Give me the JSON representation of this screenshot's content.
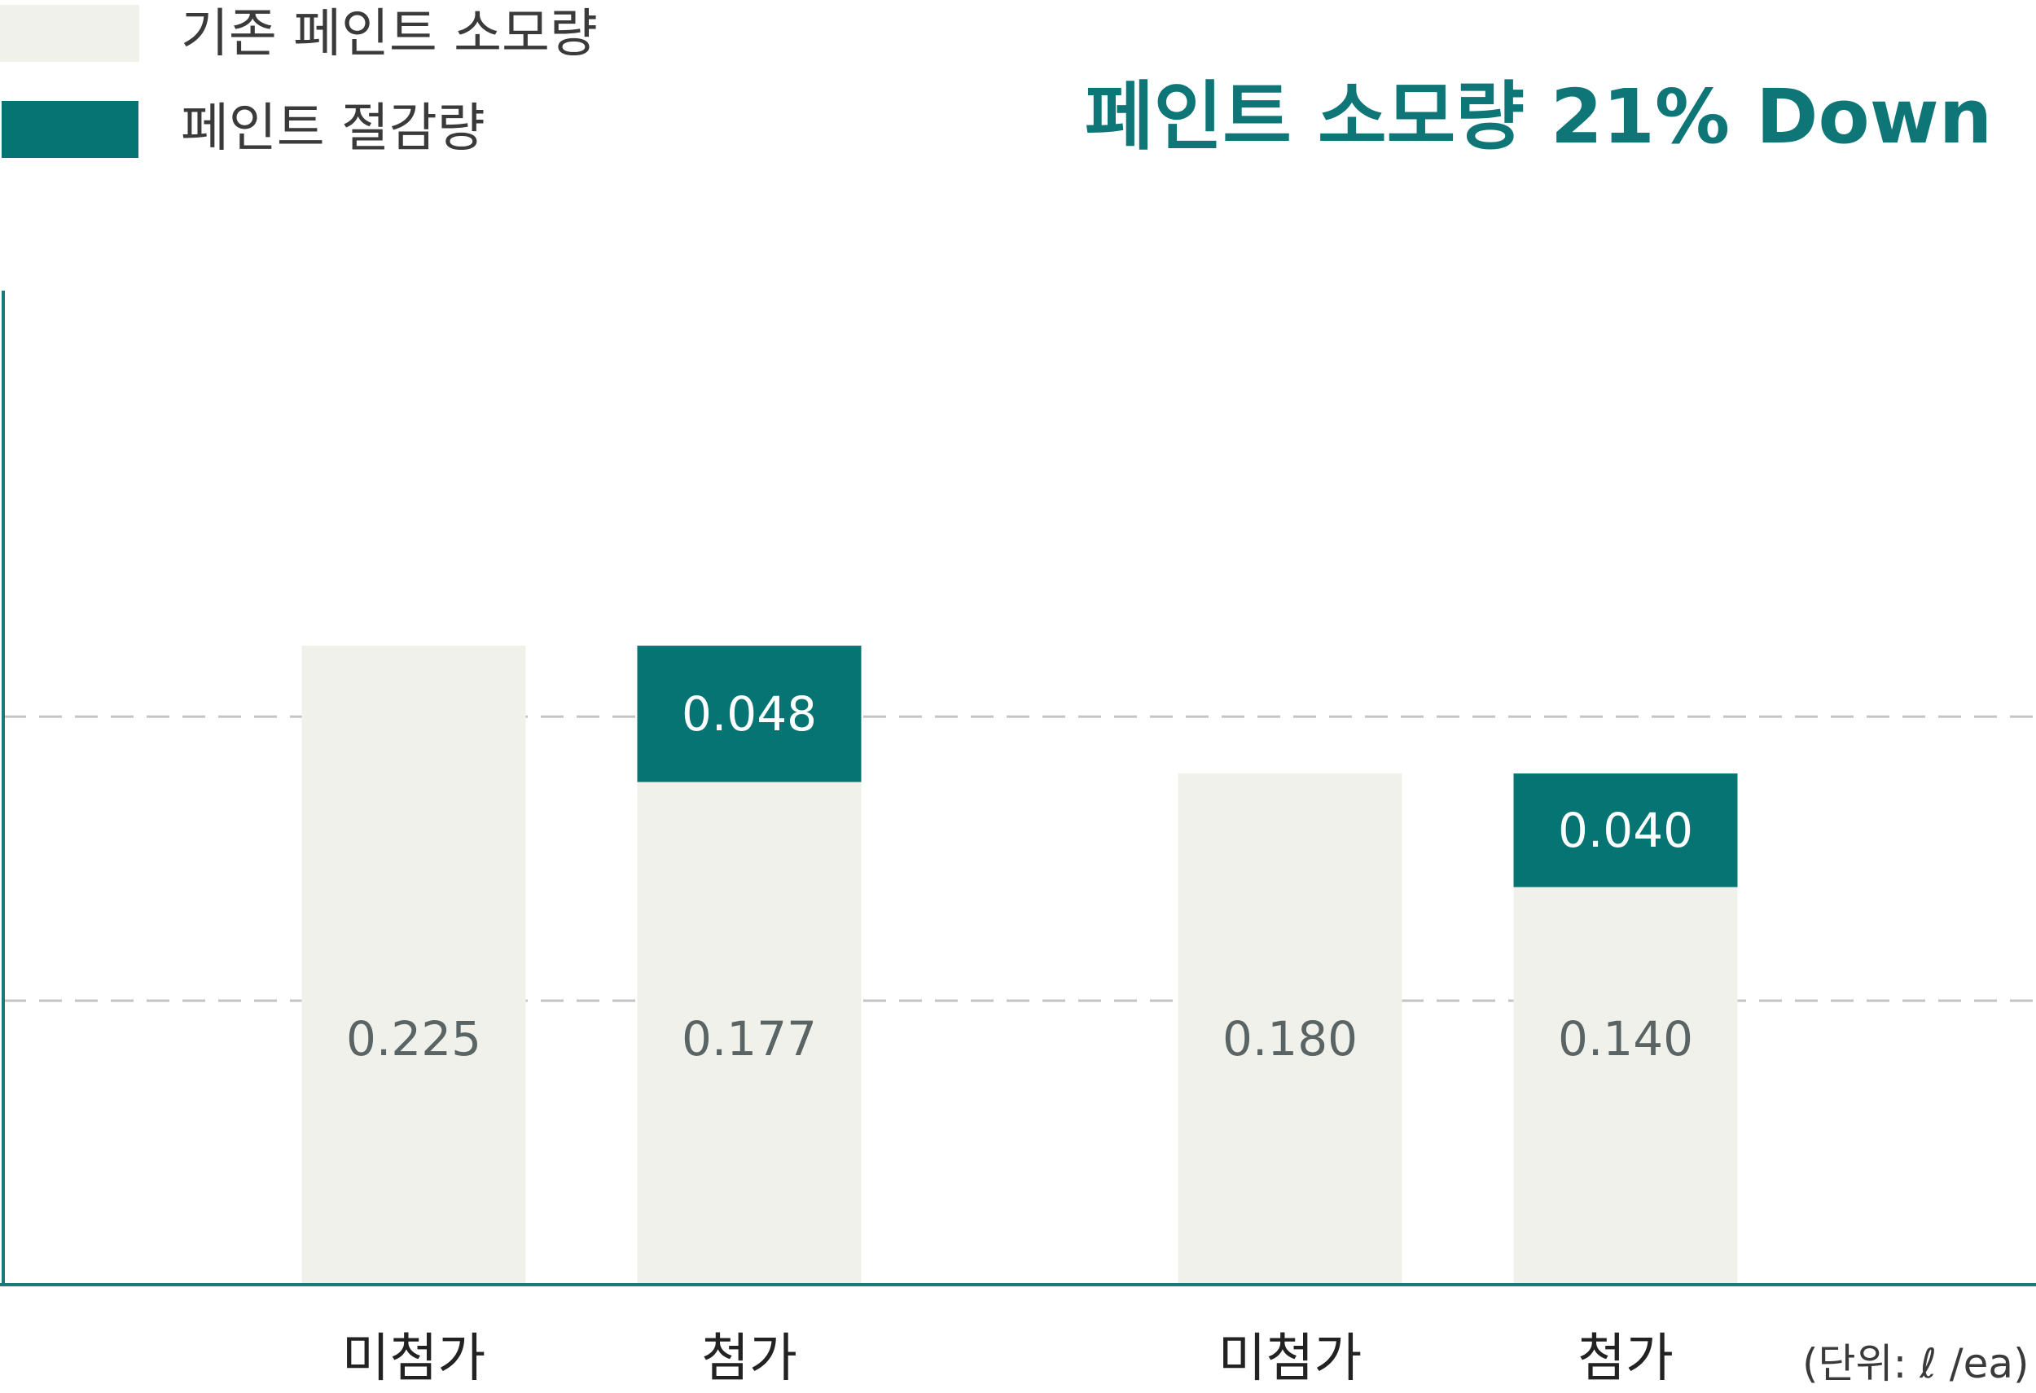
{
  "legend": [
    {
      "label": "기존 페인트 소모량",
      "color": "#f0f1ea"
    },
    {
      "label": "페인트 절감량",
      "color": "#077474"
    }
  ],
  "headline": "페인트 소모량 21% Down",
  "unit_note": "(단위:  ℓ /ea)",
  "colors": {
    "base": "#f0f1ea",
    "saving": "#077474",
    "axis": "#1a7a7a",
    "grid": "#c4c4c4",
    "base_text": "#5a6464",
    "saving_text": "#ffffff"
  },
  "chart_data": {
    "type": "bar",
    "stacked": true,
    "categories": [
      "미첨가",
      "첨가",
      "미첨가",
      "첨가"
    ],
    "series": [
      {
        "name": "기존 페인트 소모량",
        "values": [
          0.225,
          0.177,
          0.18,
          0.14
        ],
        "labels": [
          "0.225",
          "0.177",
          "0.180",
          "0.140"
        ]
      },
      {
        "name": "페인트 절감량",
        "values": [
          0,
          0.048,
          0,
          0.04
        ],
        "labels": [
          "",
          "0.048",
          "",
          "0.040"
        ]
      }
    ],
    "ylim": [
      0,
      0.35
    ],
    "gridlines": [
      0.1,
      0.2
    ],
    "grid": true,
    "legend_position": "top-left",
    "xlabel": "",
    "ylabel": ""
  }
}
